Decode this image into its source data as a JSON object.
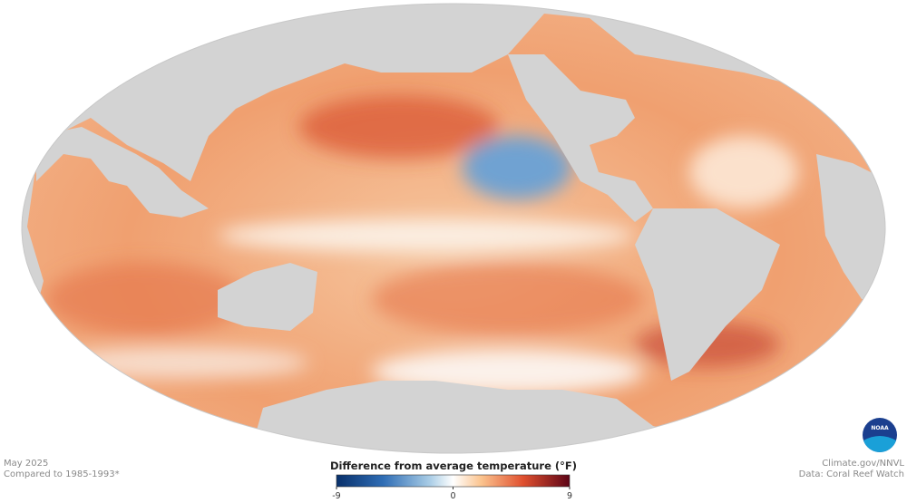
{
  "header": {
    "date": "May 2025",
    "baseline": "Compared to 1985-1993*"
  },
  "legend": {
    "title": "Difference from average temperature (°F)",
    "range": [
      -9,
      9
    ],
    "ticks": [
      -9,
      0,
      9
    ]
  },
  "credits": {
    "site": "Climate.gov/NNVL",
    "source": "Data: Coral Reef Watch",
    "logo": "NOAA"
  }
}
